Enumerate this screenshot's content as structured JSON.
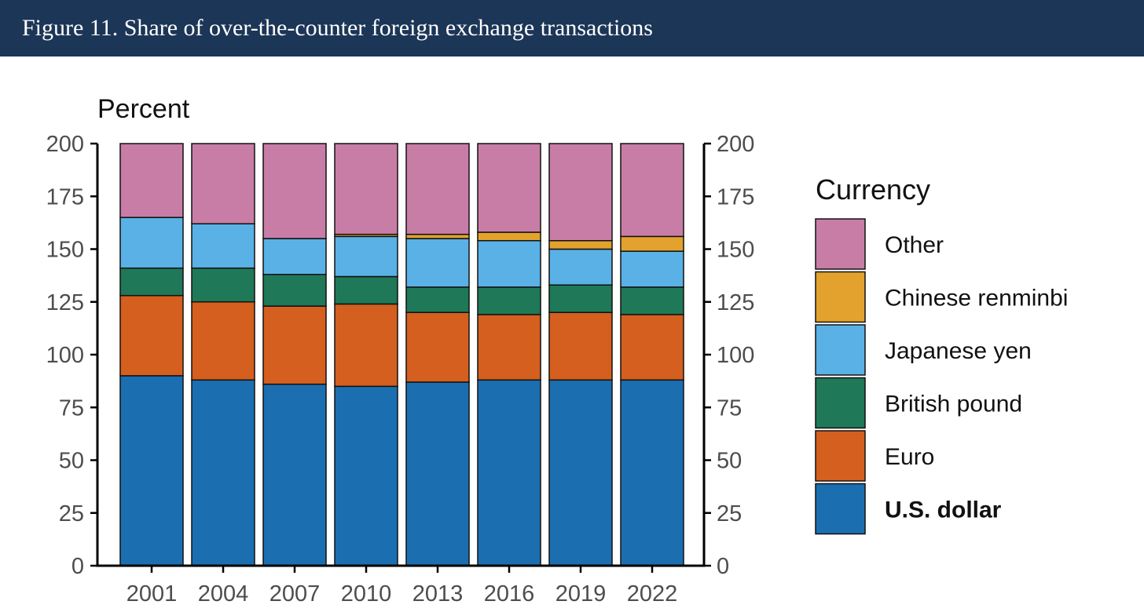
{
  "header": {
    "title": "Figure 11. Share of over-the-counter foreign exchange transactions"
  },
  "chart_data": {
    "type": "bar",
    "stacked": true,
    "ylabel": "Percent",
    "xlabel": "",
    "ylim": [
      0,
      200
    ],
    "yticks": [
      0,
      25,
      50,
      75,
      100,
      125,
      150,
      175,
      200
    ],
    "categories": [
      "2001",
      "2004",
      "2007",
      "2010",
      "2013",
      "2016",
      "2019",
      "2022"
    ],
    "legend": {
      "title": "Currency",
      "placement": "right"
    },
    "series": [
      {
        "name": "U.S. dollar",
        "color": "#1b6fb1",
        "bold": true,
        "values": [
          90,
          88,
          86,
          85,
          87,
          88,
          88,
          88
        ]
      },
      {
        "name": "Euro",
        "color": "#d45f1e",
        "bold": false,
        "values": [
          38,
          37,
          37,
          39,
          33,
          31,
          32,
          31
        ]
      },
      {
        "name": "British pound",
        "color": "#1f7858",
        "bold": false,
        "values": [
          13,
          16,
          15,
          13,
          12,
          13,
          13,
          13
        ]
      },
      {
        "name": "Japanese yen",
        "color": "#5ab1e6",
        "bold": false,
        "values": [
          24,
          21,
          17,
          19,
          23,
          22,
          17,
          17
        ]
      },
      {
        "name": "Chinese renminbi",
        "color": "#e3a22e",
        "bold": false,
        "values": [
          0,
          0,
          0,
          1,
          2,
          4,
          4,
          7
        ]
      },
      {
        "name": "Other",
        "color": "#c87da6",
        "bold": false,
        "values": [
          35,
          38,
          45,
          43,
          43,
          42,
          46,
          44
        ]
      }
    ]
  }
}
